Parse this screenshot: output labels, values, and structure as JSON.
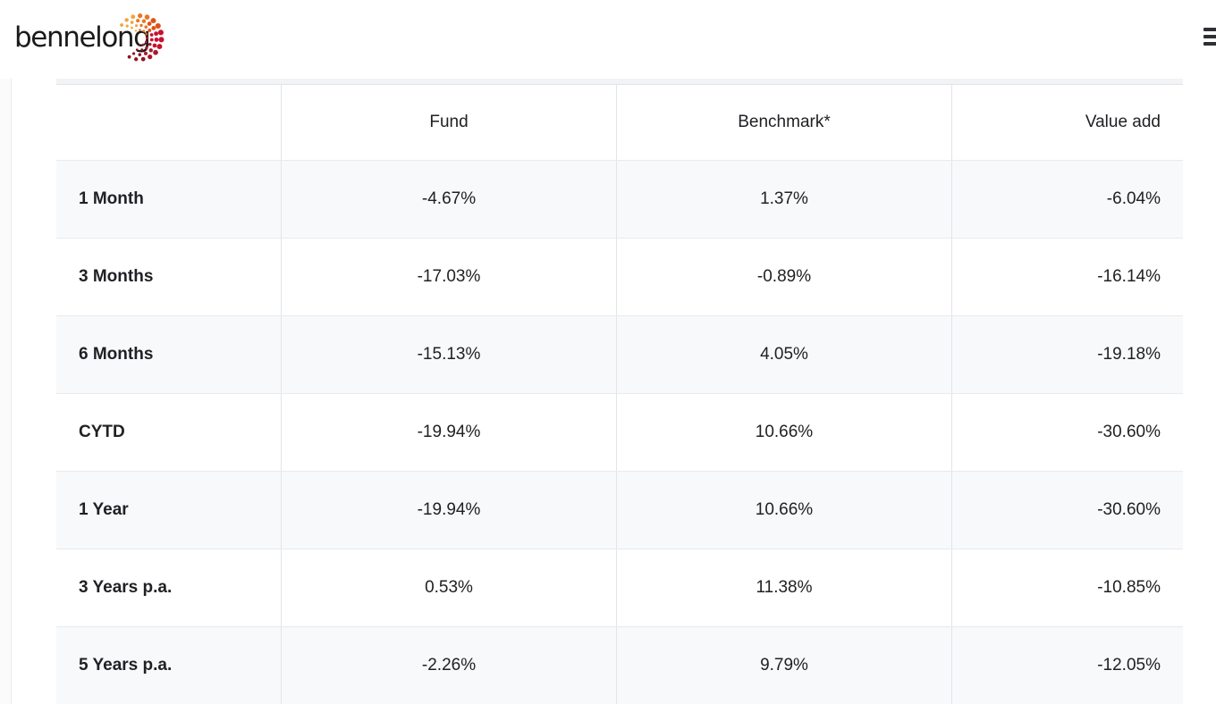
{
  "header": {
    "logo_text": "bennelong"
  },
  "brand": {
    "logo_orange": "#F2A33C",
    "logo_orange_deep": "#E87722",
    "logo_red": "#C8102E",
    "logo_red_dark": "#8E1420",
    "text_dark": "#202124"
  },
  "table": {
    "columns": [
      "",
      "Fund",
      "Benchmark*",
      "Value add"
    ],
    "rows": [
      {
        "label": "1 Month",
        "fund": "-4.67%",
        "benchmark": "1.37%",
        "value_add": "-6.04%"
      },
      {
        "label": "3 Months",
        "fund": "-17.03%",
        "benchmark": "-0.89%",
        "value_add": "-16.14%"
      },
      {
        "label": "6 Months",
        "fund": "-15.13%",
        "benchmark": "4.05%",
        "value_add": "-19.18%"
      },
      {
        "label": "CYTD",
        "fund": "-19.94%",
        "benchmark": "10.66%",
        "value_add": "-30.60%"
      },
      {
        "label": "1 Year",
        "fund": "-19.94%",
        "benchmark": "10.66%",
        "value_add": "-30.60%"
      },
      {
        "label": "3 Years p.a.",
        "fund": "0.53%",
        "benchmark": "11.38%",
        "value_add": "-10.85%"
      },
      {
        "label": "5 Years p.a.",
        "fund": "-2.26%",
        "benchmark": "9.79%",
        "value_add": "-12.05%"
      }
    ]
  }
}
